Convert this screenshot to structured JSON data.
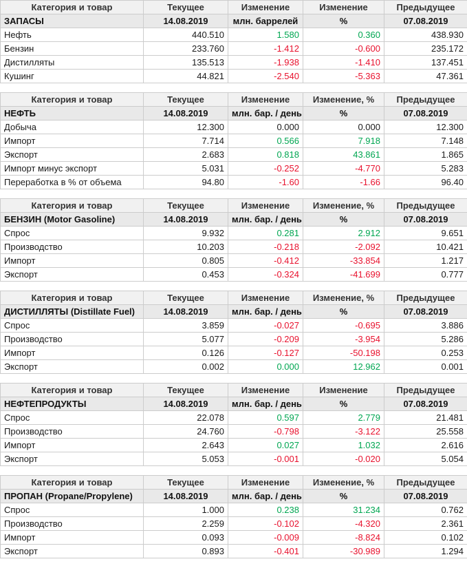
{
  "colors": {
    "positive": "#00a651",
    "negative": "#e8112d",
    "neutral_text": "#1a1a1a",
    "header_bg": "#f1f1f1",
    "subheader_bg": "#e9e9e9",
    "border": "#cccccc"
  },
  "tables": [
    {
      "name": "inventories",
      "headers": [
        "Категория и товар",
        "Текущее",
        "Изменение",
        "Изменение",
        "Предыдущее"
      ],
      "subheaders": [
        "ЗАПАСЫ",
        "14.08.2019",
        "млн. баррелей",
        "%",
        "07.08.2019"
      ],
      "rows": [
        {
          "label": "Нефть",
          "current": "440.510",
          "change": "1.580",
          "change_pct": "0.360",
          "previous": "438.930",
          "trend": "pos"
        },
        {
          "label": "Бензин",
          "current": "233.760",
          "change": "-1.412",
          "change_pct": "-0.600",
          "previous": "235.172",
          "trend": "neg"
        },
        {
          "label": "Дистилляты",
          "current": "135.513",
          "change": "-1.938",
          "change_pct": "-1.410",
          "previous": "137.451",
          "trend": "neg"
        },
        {
          "label": "Кушинг",
          "current": "44.821",
          "change": "-2.540",
          "change_pct": "-5.363",
          "previous": "47.361",
          "trend": "neg"
        }
      ]
    },
    {
      "name": "crude-oil",
      "headers": [
        "Категория и товар",
        "Текущее",
        "Изменение",
        "Изменение, %",
        "Предыдущее"
      ],
      "subheaders": [
        "НЕФТЬ",
        "14.08.2019",
        "млн. бар. / день",
        "%",
        "07.08.2019"
      ],
      "rows": [
        {
          "label": "Добыча",
          "current": "12.300",
          "change": "0.000",
          "change_pct": "0.000",
          "previous": "12.300",
          "trend": "neutral"
        },
        {
          "label": "Импорт",
          "current": "7.714",
          "change": "0.566",
          "change_pct": "7.918",
          "previous": "7.148",
          "trend": "pos"
        },
        {
          "label": "Экспорт",
          "current": "2.683",
          "change": "0.818",
          "change_pct": "43.861",
          "previous": "1.865",
          "trend": "pos"
        },
        {
          "label": "Импорт минус экспорт",
          "current": "5.031",
          "change": "-0.252",
          "change_pct": "-4.770",
          "previous": "5.283",
          "trend": "neg"
        },
        {
          "label": "Переработка в % от объема",
          "current": "94.80",
          "change": "-1.60",
          "change_pct": "-1.66",
          "previous": "96.40",
          "trend": "neg"
        }
      ]
    },
    {
      "name": "gasoline",
      "headers": [
        "Категория и товар",
        "Текущее",
        "Изменение",
        "Изменение, %",
        "Предыдущее"
      ],
      "subheaders": [
        "БЕНЗИН (Motor Gasoline)",
        "14.08.2019",
        "млн. бар. / день",
        "%",
        "07.08.2019"
      ],
      "rows": [
        {
          "label": "Спрос",
          "current": "9.932",
          "change": "0.281",
          "change_pct": "2.912",
          "previous": "9.651",
          "trend": "pos"
        },
        {
          "label": "Производство",
          "current": "10.203",
          "change": "-0.218",
          "change_pct": "-2.092",
          "previous": "10.421",
          "trend": "neg"
        },
        {
          "label": "Импорт",
          "current": "0.805",
          "change": "-0.412",
          "change_pct": "-33.854",
          "previous": "1.217",
          "trend": "neg"
        },
        {
          "label": "Экспорт",
          "current": "0.453",
          "change": "-0.324",
          "change_pct": "-41.699",
          "previous": "0.777",
          "trend": "neg"
        }
      ]
    },
    {
      "name": "distillates",
      "headers": [
        "Категория и товар",
        "Текущее",
        "Изменение",
        "Изменение, %",
        "Предыдущее"
      ],
      "subheaders": [
        "ДИСТИЛЛЯТЫ (Distillate Fuel)",
        "14.08.2019",
        "млн. бар. / день",
        "%",
        "07.08.2019"
      ],
      "rows": [
        {
          "label": "Спрос",
          "current": "3.859",
          "change": "-0.027",
          "change_pct": "-0.695",
          "previous": "3.886",
          "trend": "neg"
        },
        {
          "label": "Производство",
          "current": "5.077",
          "change": "-0.209",
          "change_pct": "-3.954",
          "previous": "5.286",
          "trend": "neg"
        },
        {
          "label": "Импорт",
          "current": "0.126",
          "change": "-0.127",
          "change_pct": "-50.198",
          "previous": "0.253",
          "trend": "neg"
        },
        {
          "label": "Экспорт",
          "current": "0.002",
          "change": "0.000",
          "change_pct": "12.962",
          "previous": "0.001",
          "trend": "pos"
        }
      ]
    },
    {
      "name": "petroleum-products",
      "headers": [
        "Категория и товар",
        "Текущее",
        "Изменение",
        "Изменение",
        "Предыдущее"
      ],
      "subheaders": [
        "НЕФТЕПРОДУКТЫ",
        "14.08.2019",
        "млн. бар. / день",
        "%",
        "07.08.2019"
      ],
      "rows": [
        {
          "label": "Спрос",
          "current": "22.078",
          "change": "0.597",
          "change_pct": "2.779",
          "previous": "21.481",
          "trend": "pos"
        },
        {
          "label": "Производство",
          "current": "24.760",
          "change": "-0.798",
          "change_pct": "-3.122",
          "previous": "25.558",
          "trend": "neg"
        },
        {
          "label": "Импорт",
          "current": "2.643",
          "change": "0.027",
          "change_pct": "1.032",
          "previous": "2.616",
          "trend": "pos"
        },
        {
          "label": "Экспорт",
          "current": "5.053",
          "change": "-0.001",
          "change_pct": "-0.020",
          "previous": "5.054",
          "trend": "neg"
        }
      ]
    },
    {
      "name": "propane",
      "headers": [
        "Категория и товар",
        "Текущее",
        "Изменение",
        "Изменение, %",
        "Предыдущее"
      ],
      "subheaders": [
        "ПРОПАН (Propane/Propylene)",
        "14.08.2019",
        "млн. бар. / день",
        "%",
        "07.08.2019"
      ],
      "rows": [
        {
          "label": "Спрос",
          "current": "1.000",
          "change": "0.238",
          "change_pct": "31.234",
          "previous": "0.762",
          "trend": "pos"
        },
        {
          "label": "Производство",
          "current": "2.259",
          "change": "-0.102",
          "change_pct": "-4.320",
          "previous": "2.361",
          "trend": "neg"
        },
        {
          "label": "Импорт",
          "current": "0.093",
          "change": "-0.009",
          "change_pct": "-8.824",
          "previous": "0.102",
          "trend": "neg"
        },
        {
          "label": "Экспорт",
          "current": "0.893",
          "change": "-0.401",
          "change_pct": "-30.989",
          "previous": "1.294",
          "trend": "neg"
        }
      ]
    }
  ]
}
